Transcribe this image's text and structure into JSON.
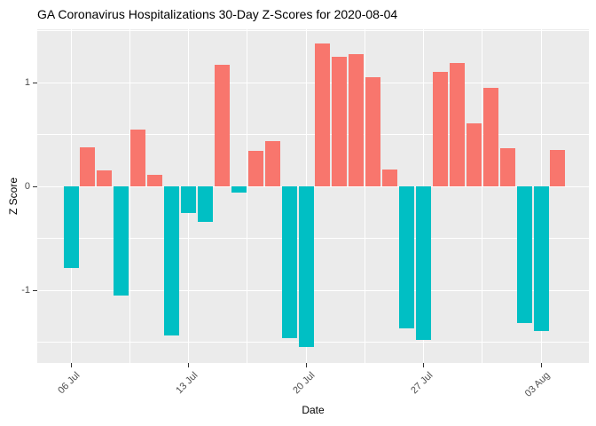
{
  "chart_data": {
    "type": "bar",
    "title": "GA Coronavirus Hospitalizations 30-Day Z-Scores for 2020-08-04",
    "xlabel": "Date",
    "ylabel": "Z Score",
    "ylim": [
      -1.7,
      1.51
    ],
    "grid": "on",
    "legend": "none",
    "panel_bg": "#EBEBEB",
    "grid_color": "#FFFFFF",
    "bar_colors": {
      "positive": "#F8766D",
      "negative": "#00BFC4"
    },
    "y_ticks": [
      {
        "value": -1,
        "label": "-1"
      },
      {
        "value": 0,
        "label": "0"
      },
      {
        "value": 1,
        "label": "1"
      }
    ],
    "y_minor_gridlines": [
      -1.5,
      -0.5,
      0.5,
      1.5
    ],
    "x_ticks": [
      {
        "day_index": 0,
        "label": "06 Jul"
      },
      {
        "day_index": 7,
        "label": "13 Jul"
      },
      {
        "day_index": 14,
        "label": "20 Jul"
      },
      {
        "day_index": 21,
        "label": "27 Jul"
      },
      {
        "day_index": 28,
        "label": "03 Aug"
      }
    ],
    "x_minor_day_indices": [
      3.5,
      10.5,
      17.5,
      24.5
    ],
    "series": [
      {
        "name": "z_score",
        "x": [
          "2020-07-06",
          "2020-07-07",
          "2020-07-08",
          "2020-07-09",
          "2020-07-10",
          "2020-07-11",
          "2020-07-12",
          "2020-07-13",
          "2020-07-14",
          "2020-07-15",
          "2020-07-16",
          "2020-07-17",
          "2020-07-18",
          "2020-07-19",
          "2020-07-20",
          "2020-07-21",
          "2020-07-22",
          "2020-07-23",
          "2020-07-24",
          "2020-07-25",
          "2020-07-26",
          "2020-07-27",
          "2020-07-28",
          "2020-07-29",
          "2020-07-30",
          "2020-07-31",
          "2020-08-01",
          "2020-08-02",
          "2020-08-03",
          "2020-08-04"
        ],
        "values": [
          -0.79,
          0.38,
          0.15,
          -1.05,
          0.55,
          0.11,
          -1.44,
          -0.26,
          -0.34,
          1.17,
          -0.06,
          0.34,
          0.44,
          -1.46,
          -1.55,
          1.38,
          1.25,
          1.27,
          1.05,
          0.16,
          -1.37,
          -1.48,
          1.1,
          1.19,
          0.61,
          0.95,
          0.37,
          -1.32,
          -1.39,
          0.35
        ]
      }
    ]
  }
}
